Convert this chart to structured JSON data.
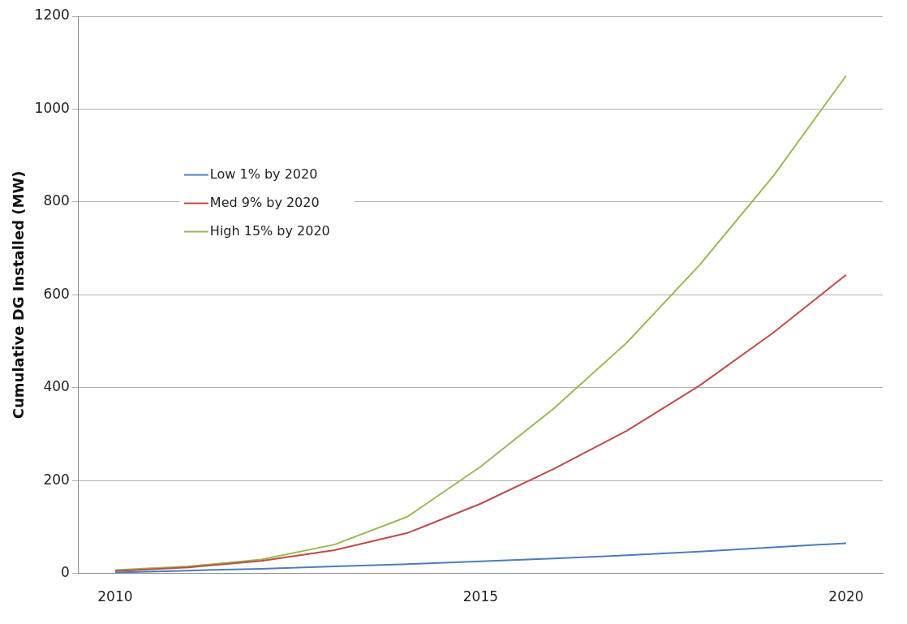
{
  "chart_data": {
    "type": "line",
    "ylabel": "Cumulative DG Installed (MW)",
    "categories": [
      "2010",
      null,
      null,
      null,
      null,
      "2015",
      null,
      null,
      null,
      null,
      "2020"
    ],
    "series": [
      {
        "name": "Low 1% by 2020",
        "color": "#4a7ebb",
        "values": [
          2,
          6,
          10,
          15,
          20,
          26,
          32,
          39,
          47,
          56,
          65
        ]
      },
      {
        "name": "Med 9% by 2020",
        "color": "#be4b48",
        "values": [
          5,
          13,
          27,
          50,
          87,
          150,
          225,
          307,
          405,
          518,
          643
        ]
      },
      {
        "name": "High 15% by 2020",
        "color": "#98b954",
        "values": [
          7,
          15,
          30,
          62,
          122,
          230,
          355,
          497,
          665,
          855,
          1072
        ]
      }
    ],
    "ylim": [
      0,
      1200
    ],
    "yticks": [
      0,
      200,
      400,
      600,
      800,
      1000,
      1200
    ],
    "grid": "y",
    "legend": "top left",
    "marker": "none",
    "line_style": "solid"
  }
}
